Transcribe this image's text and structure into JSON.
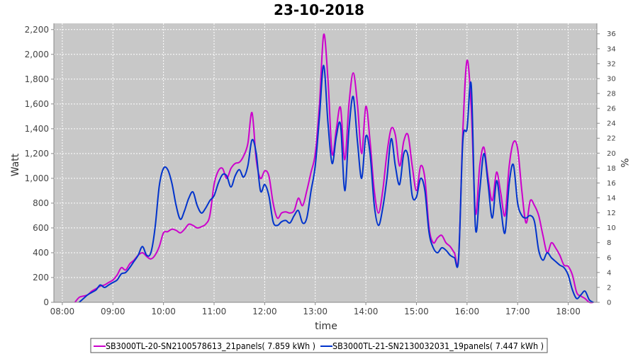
{
  "chart_data": {
    "type": "line",
    "title": "23-10-2018",
    "xlabel": "time",
    "ylabel": "Watt",
    "y2label": "%",
    "xlim": [
      "07:50",
      "18:34"
    ],
    "ylim": [
      0,
      2250
    ],
    "y2lim": [
      0,
      37.4
    ],
    "x_ticks": [
      "08:00",
      "09:00",
      "10:00",
      "11:00",
      "12:00",
      "13:00",
      "14:00",
      "15:00",
      "16:00",
      "17:00",
      "18:00"
    ],
    "y_ticks": [
      0,
      200,
      400,
      600,
      800,
      1000,
      1200,
      1400,
      1600,
      1800,
      2000,
      2200
    ],
    "y_tick_labels": [
      "0",
      "200",
      "400",
      "600",
      "800",
      "1,000",
      "1,200",
      "1,400",
      "1,600",
      "1,800",
      "2,000",
      "2,200"
    ],
    "y2_ticks": [
      0,
      2,
      4,
      6,
      8,
      10,
      12,
      14,
      16,
      18,
      20,
      22,
      24,
      26,
      28,
      30,
      32,
      34,
      36
    ],
    "grid": true,
    "legend_position": "bottom",
    "series": [
      {
        "name": "SB3000TL-20-SN2100578613_21panels( 7.859 kWh )",
        "color": "#cc00cc",
        "points": [
          [
            "08:15",
            0
          ],
          [
            "08:20",
            40
          ],
          [
            "08:25",
            50
          ],
          [
            "08:30",
            60
          ],
          [
            "08:35",
            90
          ],
          [
            "08:40",
            110
          ],
          [
            "08:45",
            130
          ],
          [
            "08:50",
            140
          ],
          [
            "08:55",
            160
          ],
          [
            "09:00",
            180
          ],
          [
            "09:05",
            220
          ],
          [
            "09:10",
            280
          ],
          [
            "09:15",
            260
          ],
          [
            "09:20",
            310
          ],
          [
            "09:25",
            340
          ],
          [
            "09:30",
            380
          ],
          [
            "09:35",
            400
          ],
          [
            "09:40",
            370
          ],
          [
            "09:45",
            350
          ],
          [
            "09:50",
            380
          ],
          [
            "09:55",
            450
          ],
          [
            "10:00",
            560
          ],
          [
            "10:05",
            570
          ],
          [
            "10:10",
            590
          ],
          [
            "10:15",
            580
          ],
          [
            "10:20",
            560
          ],
          [
            "10:25",
            590
          ],
          [
            "10:30",
            630
          ],
          [
            "10:35",
            620
          ],
          [
            "10:40",
            600
          ],
          [
            "10:45",
            610
          ],
          [
            "10:50",
            630
          ],
          [
            "10:55",
            700
          ],
          [
            "11:00",
            950
          ],
          [
            "11:05",
            1060
          ],
          [
            "11:10",
            1080
          ],
          [
            "11:15",
            1000
          ],
          [
            "11:20",
            1080
          ],
          [
            "11:25",
            1120
          ],
          [
            "11:30",
            1130
          ],
          [
            "11:35",
            1180
          ],
          [
            "11:40",
            1280
          ],
          [
            "11:45",
            1530
          ],
          [
            "11:50",
            1150
          ],
          [
            "11:55",
            1000
          ],
          [
            "12:00",
            1060
          ],
          [
            "12:05",
            1020
          ],
          [
            "12:10",
            800
          ],
          [
            "12:15",
            680
          ],
          [
            "12:20",
            720
          ],
          [
            "12:25",
            730
          ],
          [
            "12:30",
            720
          ],
          [
            "12:35",
            740
          ],
          [
            "12:40",
            840
          ],
          [
            "12:45",
            780
          ],
          [
            "12:50",
            900
          ],
          [
            "12:55",
            1050
          ],
          [
            "13:00",
            1200
          ],
          [
            "13:05",
            1600
          ],
          [
            "13:10",
            2160
          ],
          [
            "13:15",
            1800
          ],
          [
            "13:20",
            1200
          ],
          [
            "13:25",
            1400
          ],
          [
            "13:30",
            1570
          ],
          [
            "13:35",
            1150
          ],
          [
            "13:40",
            1600
          ],
          [
            "13:45",
            1850
          ],
          [
            "13:50",
            1600
          ],
          [
            "13:55",
            1200
          ],
          [
            "14:00",
            1580
          ],
          [
            "14:05",
            1300
          ],
          [
            "14:10",
            900
          ],
          [
            "14:15",
            720
          ],
          [
            "14:20",
            900
          ],
          [
            "14:25",
            1200
          ],
          [
            "14:30",
            1400
          ],
          [
            "14:35",
            1350
          ],
          [
            "14:40",
            1100
          ],
          [
            "14:45",
            1300
          ],
          [
            "14:50",
            1350
          ],
          [
            "14:55",
            1100
          ],
          [
            "15:00",
            900
          ],
          [
            "15:05",
            1100
          ],
          [
            "15:10",
            1000
          ],
          [
            "15:15",
            600
          ],
          [
            "15:20",
            480
          ],
          [
            "15:25",
            520
          ],
          [
            "15:30",
            540
          ],
          [
            "15:35",
            480
          ],
          [
            "15:40",
            450
          ],
          [
            "15:45",
            400
          ],
          [
            "15:50",
            360
          ],
          [
            "15:55",
            1380
          ],
          [
            "16:00",
            1950
          ],
          [
            "16:05",
            1560
          ],
          [
            "16:10",
            720
          ],
          [
            "16:15",
            1100
          ],
          [
            "16:20",
            1250
          ],
          [
            "16:25",
            1000
          ],
          [
            "16:30",
            820
          ],
          [
            "16:35",
            1050
          ],
          [
            "16:40",
            880
          ],
          [
            "16:45",
            700
          ],
          [
            "16:50",
            1100
          ],
          [
            "16:55",
            1290
          ],
          [
            "17:00",
            1240
          ],
          [
            "17:05",
            900
          ],
          [
            "17:10",
            640
          ],
          [
            "17:15",
            820
          ],
          [
            "17:20",
            780
          ],
          [
            "17:25",
            700
          ],
          [
            "17:30",
            540
          ],
          [
            "17:35",
            400
          ],
          [
            "17:40",
            480
          ],
          [
            "17:45",
            440
          ],
          [
            "17:50",
            380
          ],
          [
            "17:55",
            300
          ],
          [
            "18:00",
            290
          ],
          [
            "18:05",
            220
          ],
          [
            "18:10",
            80
          ],
          [
            "18:15",
            50
          ],
          [
            "18:20",
            30
          ],
          [
            "18:25",
            0
          ],
          [
            "18:30",
            0
          ]
        ]
      },
      {
        "name": "SB3000TL-21-SN2130032031_19panels( 7.447 kWh )",
        "color": "#0033cc",
        "points": [
          [
            "08:20",
            0
          ],
          [
            "08:25",
            30
          ],
          [
            "08:30",
            60
          ],
          [
            "08:35",
            80
          ],
          [
            "08:40",
            100
          ],
          [
            "08:45",
            140
          ],
          [
            "08:50",
            120
          ],
          [
            "08:55",
            140
          ],
          [
            "09:00",
            160
          ],
          [
            "09:05",
            180
          ],
          [
            "09:10",
            230
          ],
          [
            "09:15",
            240
          ],
          [
            "09:20",
            280
          ],
          [
            "09:25",
            330
          ],
          [
            "09:30",
            380
          ],
          [
            "09:35",
            450
          ],
          [
            "09:40",
            380
          ],
          [
            "09:45",
            400
          ],
          [
            "09:50",
            600
          ],
          [
            "09:55",
            940
          ],
          [
            "10:00",
            1080
          ],
          [
            "10:05",
            1070
          ],
          [
            "10:10",
            960
          ],
          [
            "10:15",
            780
          ],
          [
            "10:20",
            670
          ],
          [
            "10:25",
            740
          ],
          [
            "10:30",
            840
          ],
          [
            "10:35",
            890
          ],
          [
            "10:40",
            780
          ],
          [
            "10:45",
            720
          ],
          [
            "10:50",
            760
          ],
          [
            "10:55",
            820
          ],
          [
            "11:00",
            860
          ],
          [
            "11:05",
            960
          ],
          [
            "11:10",
            1030
          ],
          [
            "11:15",
            1020
          ],
          [
            "11:20",
            930
          ],
          [
            "11:25",
            1020
          ],
          [
            "11:30",
            1070
          ],
          [
            "11:35",
            1010
          ],
          [
            "11:40",
            1100
          ],
          [
            "11:45",
            1310
          ],
          [
            "11:50",
            1200
          ],
          [
            "11:55",
            900
          ],
          [
            "12:00",
            950
          ],
          [
            "12:05",
            860
          ],
          [
            "12:10",
            650
          ],
          [
            "12:15",
            620
          ],
          [
            "12:20",
            650
          ],
          [
            "12:25",
            660
          ],
          [
            "12:30",
            640
          ],
          [
            "12:35",
            700
          ],
          [
            "12:40",
            740
          ],
          [
            "12:45",
            640
          ],
          [
            "12:50",
            680
          ],
          [
            "12:55",
            900
          ],
          [
            "13:00",
            1100
          ],
          [
            "13:05",
            1500
          ],
          [
            "13:10",
            1910
          ],
          [
            "13:15",
            1450
          ],
          [
            "13:20",
            1120
          ],
          [
            "13:25",
            1340
          ],
          [
            "13:30",
            1430
          ],
          [
            "13:35",
            900
          ],
          [
            "13:40",
            1400
          ],
          [
            "13:45",
            1660
          ],
          [
            "13:50",
            1300
          ],
          [
            "13:55",
            1000
          ],
          [
            "14:00",
            1340
          ],
          [
            "14:05",
            1200
          ],
          [
            "14:10",
            780
          ],
          [
            "14:15",
            620
          ],
          [
            "14:20",
            760
          ],
          [
            "14:25",
            1000
          ],
          [
            "14:30",
            1320
          ],
          [
            "14:35",
            1100
          ],
          [
            "14:40",
            950
          ],
          [
            "14:45",
            1200
          ],
          [
            "14:50",
            1180
          ],
          [
            "14:55",
            860
          ],
          [
            "15:00",
            850
          ],
          [
            "15:05",
            1000
          ],
          [
            "15:10",
            900
          ],
          [
            "15:15",
            560
          ],
          [
            "15:20",
            440
          ],
          [
            "15:25",
            400
          ],
          [
            "15:30",
            440
          ],
          [
            "15:35",
            420
          ],
          [
            "15:40",
            380
          ],
          [
            "15:45",
            360
          ],
          [
            "15:50",
            350
          ],
          [
            "15:55",
            1300
          ],
          [
            "16:00",
            1400
          ],
          [
            "16:05",
            1750
          ],
          [
            "16:10",
            600
          ],
          [
            "16:15",
            900
          ],
          [
            "16:20",
            1200
          ],
          [
            "16:25",
            950
          ],
          [
            "16:30",
            680
          ],
          [
            "16:35",
            980
          ],
          [
            "16:40",
            760
          ],
          [
            "16:45",
            560
          ],
          [
            "16:50",
            960
          ],
          [
            "16:55",
            1110
          ],
          [
            "17:00",
            800
          ],
          [
            "17:05",
            700
          ],
          [
            "17:10",
            680
          ],
          [
            "17:15",
            700
          ],
          [
            "17:20",
            650
          ],
          [
            "17:25",
            420
          ],
          [
            "17:30",
            340
          ],
          [
            "17:35",
            400
          ],
          [
            "17:40",
            360
          ],
          [
            "17:45",
            330
          ],
          [
            "17:50",
            300
          ],
          [
            "17:55",
            280
          ],
          [
            "18:00",
            220
          ],
          [
            "18:05",
            100
          ],
          [
            "18:10",
            30
          ],
          [
            "18:15",
            60
          ],
          [
            "18:20",
            90
          ],
          [
            "18:25",
            20
          ],
          [
            "18:30",
            0
          ]
        ]
      }
    ]
  }
}
